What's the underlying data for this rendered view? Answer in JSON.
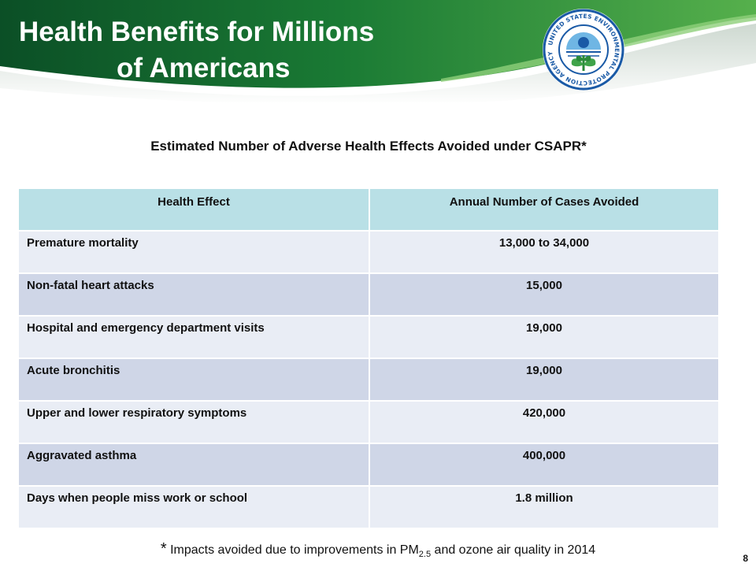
{
  "slide": {
    "title_line1": "Health Benefits for Millions",
    "title_line2": "of Americans",
    "subtitle": "Estimated Number of Adverse Health Effects Avoided under CSAPR*",
    "page_number": "8"
  },
  "seal": {
    "text": "UNITED STATES ENVIRONMENTAL PROTECTION AGENCY",
    "icon": "epa-seal-icon"
  },
  "table": {
    "headers": [
      "Health Effect",
      "Annual Number of Cases Avoided"
    ],
    "rows": [
      {
        "effect": "Premature mortality",
        "value": "13,000 to 34,000"
      },
      {
        "effect": "Non-fatal heart attacks",
        "value": "15,000"
      },
      {
        "effect": "Hospital and emergency department visits",
        "value": "19,000"
      },
      {
        "effect": "Acute bronchitis",
        "value": "19,000"
      },
      {
        "effect": "Upper and lower respiratory symptoms",
        "value": "420,000"
      },
      {
        "effect": "Aggravated asthma",
        "value": "400,000"
      },
      {
        "effect": "Days when people miss work or school",
        "value": "1.8 million"
      }
    ]
  },
  "footnote": {
    "marker": "*",
    "text_before": "Impacts avoided due to improvements in PM",
    "subscript": "2.5",
    "text_after": " and ozone air quality in 2014"
  },
  "colors": {
    "header_green_dark": "#0d5a2a",
    "header_green_light": "#4aa84a",
    "table_header": "#b9e0e6",
    "row_light": "#e9edf5",
    "row_dark": "#cfd6e7",
    "seal_blue": "#1a5aa6"
  }
}
